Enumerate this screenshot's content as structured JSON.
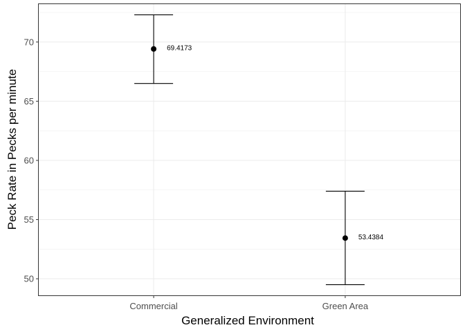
{
  "chart_data": {
    "type": "scatter",
    "title": "",
    "xlabel": "Generalized Environment",
    "ylabel": "Peck Rate in Pecks per minute",
    "categories": [
      "Commercial",
      "Green Area"
    ],
    "points": [
      {
        "category": "Commercial",
        "mean": 69.4173,
        "lower": 66.5,
        "upper": 72.3,
        "label": "69.4173"
      },
      {
        "category": "Green Area",
        "mean": 53.4384,
        "lower": 49.5,
        "upper": 57.4,
        "label": "53.4384"
      }
    ],
    "yticks": [
      50,
      55,
      60,
      65,
      70
    ],
    "ylim": [
      48.6,
      73.2
    ],
    "grid": true,
    "legend": "none"
  }
}
